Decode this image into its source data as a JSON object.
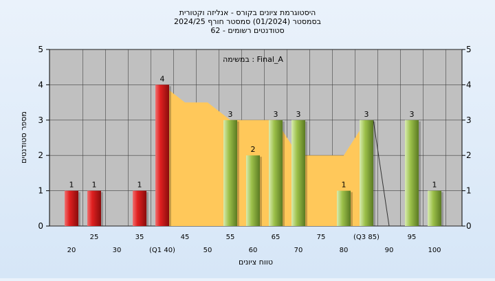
{
  "chart_data": {
    "type": "bar",
    "title_lines": [
      "היסטוגרמת ציונים בקורס - אנליזה וקטורית",
      "בסמסטר  (01/2024)  סמסטר חורף 2024/25",
      "סטודנטים רשומים - 62"
    ],
    "xlabel": "טווח ציונים",
    "ylabel": "מספר סטודנטים",
    "annotation": "במשימה : Final_A",
    "ylim": [
      0,
      5
    ],
    "yticks": [
      0,
      1,
      2,
      3,
      4,
      5
    ],
    "grid": true,
    "categories": [
      "20",
      "25",
      "30",
      "35",
      "(Q1 40)",
      "45",
      "50",
      "55",
      "60",
      "65",
      "70",
      "75",
      "80",
      "(Q3 85)",
      "90",
      "95",
      "100"
    ],
    "values": [
      1,
      1,
      0,
      1,
      4,
      0,
      0,
      3,
      2,
      3,
      3,
      0,
      1,
      3,
      0,
      3,
      1
    ],
    "bar_groups": [
      "red",
      "red",
      "red",
      "red",
      "red",
      "green",
      "green",
      "green",
      "green",
      "green",
      "green",
      "green",
      "green",
      "green",
      "green",
      "green",
      "green"
    ],
    "area_series": {
      "values": [
        null,
        null,
        null,
        null,
        4,
        3.5,
        3.5,
        3,
        3,
        3,
        2,
        2,
        2,
        3,
        null,
        null,
        null
      ]
    },
    "colors": {
      "red_bar": "#e02020",
      "green_bar": "#9cc04a",
      "area_fill": "#ffc85a",
      "plot_bg": "#c0c0c0",
      "grid": "#404040"
    }
  }
}
